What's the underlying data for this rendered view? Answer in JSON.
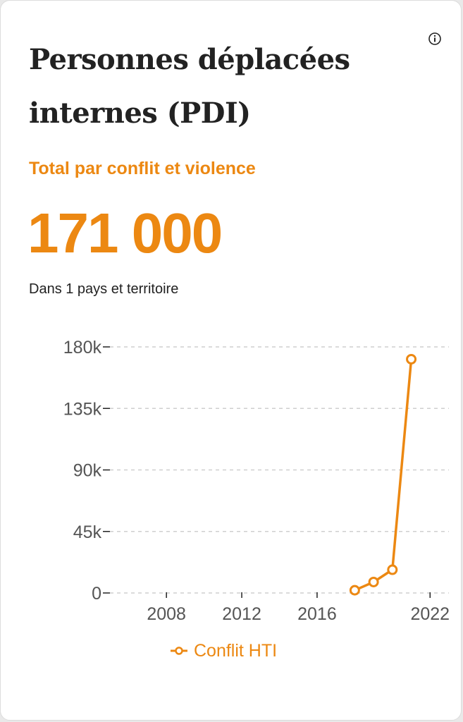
{
  "card": {
    "title_line1": "Personnes déplacées",
    "title_line2": "internes (PDI)",
    "subtitle": "Total par conflit et violence",
    "total": "171 000",
    "caption": "Dans 1 pays et territoire",
    "info_icon": "info-icon"
  },
  "colors": {
    "accent": "#ec8812",
    "text": "#222222",
    "axis_text": "#555555",
    "grid": "#cfcfcf"
  },
  "chart_data": {
    "type": "line",
    "title": "",
    "xlabel": "",
    "ylabel": "",
    "xlim": [
      2005,
      2023
    ],
    "ylim": [
      0,
      180000
    ],
    "x_ticks": [
      2008,
      2012,
      2016,
      2022
    ],
    "x_tick_labels": [
      "2008",
      "2012",
      "2016",
      "2022"
    ],
    "y_ticks": [
      0,
      45000,
      90000,
      135000,
      180000
    ],
    "y_tick_labels": [
      "0",
      "45k",
      "90k",
      "135k",
      "180k"
    ],
    "grid": "horizontal dashed",
    "legend_position": "bottom-center",
    "series": [
      {
        "name": "Conflit HTI",
        "x": [
          2018,
          2019,
          2020,
          2021
        ],
        "y": [
          2000,
          8000,
          17000,
          171000
        ]
      }
    ]
  }
}
